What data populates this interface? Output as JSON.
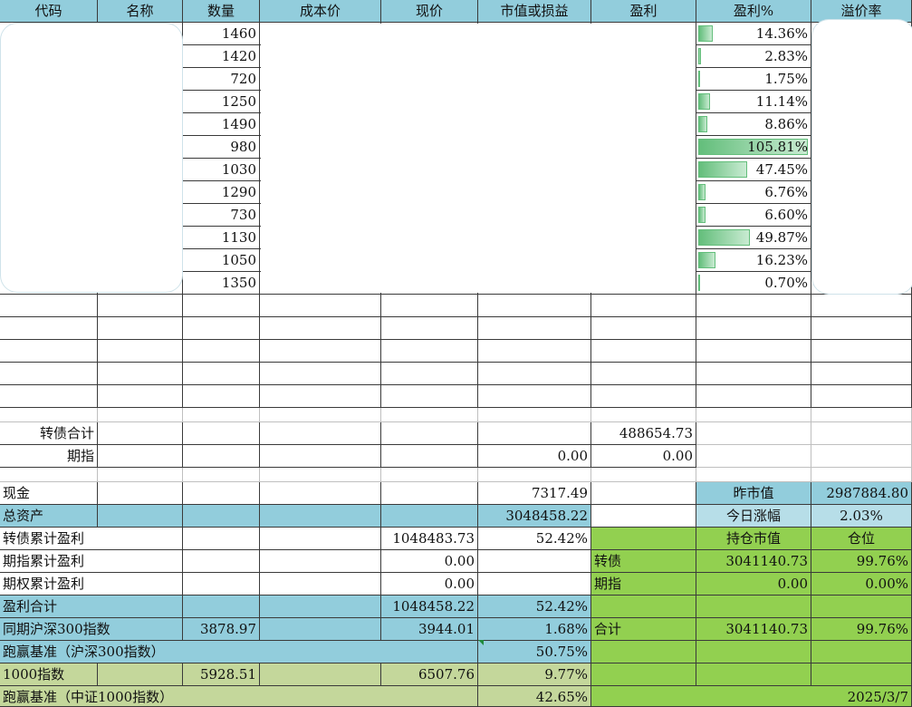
{
  "headers": [
    "代码",
    "名称",
    "数量",
    "成本价",
    "现价",
    "市值或损益",
    "盈利",
    "盈利%",
    "溢价率"
  ],
  "holdings": [
    {
      "qty": "1460",
      "pct": "14.36%",
      "pct_value": 14.36
    },
    {
      "qty": "1420",
      "pct": "2.83%",
      "pct_value": 2.83
    },
    {
      "qty": "720",
      "pct": "1.75%",
      "pct_value": 1.75
    },
    {
      "qty": "1250",
      "pct": "11.14%",
      "pct_value": 11.14
    },
    {
      "qty": "1490",
      "pct": "8.86%",
      "pct_value": 8.86
    },
    {
      "qty": "980",
      "pct": "105.81%",
      "pct_value": 105.81
    },
    {
      "qty": "1030",
      "pct": "47.45%",
      "pct_value": 47.45
    },
    {
      "qty": "1290",
      "pct": "6.76%",
      "pct_value": 6.76
    },
    {
      "qty": "730",
      "pct": "6.60%",
      "pct_value": 6.6
    },
    {
      "qty": "1130",
      "pct": "49.87%",
      "pct_value": 49.87
    },
    {
      "qty": "1050",
      "pct": "16.23%",
      "pct_value": 16.23
    },
    {
      "qty": "1350",
      "pct": "0.70%",
      "pct_value": 0.7
    }
  ],
  "summary": {
    "cb_total_label": "转债合计",
    "cb_total_profit": "488654.73",
    "futures_label": "期指",
    "futures_value": "0.00",
    "futures_profit": "0.00",
    "cash_label": "现金",
    "cash_value": "7317.49",
    "total_assets_label": "总资产",
    "total_assets_value": "3048458.22",
    "cb_cum_label": "转债累计盈利",
    "cb_cum_value": "1048483.73",
    "cb_cum_pct": "52.42%",
    "fut_cum_label": "期指累计盈利",
    "fut_cum_value": "0.00",
    "opt_cum_label": "期权累计盈利",
    "opt_cum_value": "0.00",
    "profit_total_label": "盈利合计",
    "profit_total_value": "1048458.22",
    "profit_total_pct": "52.42%",
    "hs300_label": "同期沪深300指数",
    "hs300_start": "3878.97",
    "hs300_now": "3944.01",
    "hs300_pct": "1.68%",
    "beat_hs300_label": "跑赢基准（沪深300指数）",
    "beat_hs300_pct": "50.75%",
    "zz1000_label": "1000指数",
    "zz1000_start": "5928.51",
    "zz1000_now": "6507.76",
    "zz1000_pct": "9.77%",
    "beat_zz1000_label": "跑赢基准（中证1000指数）",
    "beat_zz1000_pct": "42.65%"
  },
  "right_panel": {
    "prev_mv_label": "昨市值",
    "prev_mv_value": "2987884.80",
    "today_chg_label": "今日涨幅",
    "today_chg_value": "2.03%",
    "hold_mv_label": "持仓市值",
    "position_label": "仓位",
    "cb_label": "转债",
    "cb_mv": "3041140.73",
    "cb_pos": "99.76%",
    "fut_label": "期指",
    "fut_mv": "0.00",
    "fut_pos": "0.00%",
    "total_label": "合计",
    "total_mv": "3041140.73",
    "total_pos": "99.76%",
    "date": "2025/3/7"
  },
  "colors": {
    "header": "#92cddc",
    "light_blue": "#b7dee8",
    "green": "#92d050",
    "olive": "#c4d79b",
    "databar": "#63be7b"
  }
}
